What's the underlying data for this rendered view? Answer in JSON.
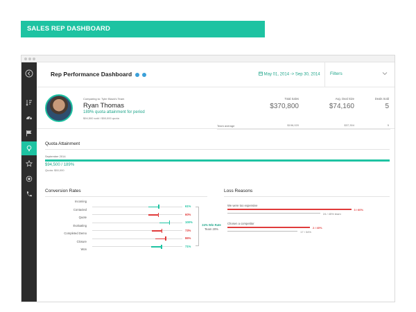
{
  "banner": {
    "title": "SALES REP DASHBOARD"
  },
  "header": {
    "title": "Rep Performance Dashboard",
    "date_range": "May 01, 2014 -> Sep 30, 2014",
    "filters_label": "Filters"
  },
  "profile": {
    "comparing_to": "Comparing to: Tyler Black's Team",
    "name": "Ryan Thomas",
    "quota_attainment": "189% quota attainment for period",
    "sold_summary": "$94,500 sold / $50,000 quota",
    "team_average_label": "Team average"
  },
  "stats": [
    {
      "label": "Total Sales",
      "value": "$370,800",
      "team": "$196,020"
    },
    {
      "label": "Avg. Deal Size",
      "value": "$74,160",
      "team": "$37,304"
    },
    {
      "label": "Deals Sold",
      "value": "5",
      "team": "5"
    }
  ],
  "quota_attainment": {
    "title": "Quota Attainment",
    "month": "September 2014",
    "value_text": "$94,500 / 189%",
    "quota_text": "Quota: $50,000",
    "fraction": 1.0
  },
  "conversion_rates": {
    "title": "Conversion Rates",
    "stages": [
      "Incoming",
      "Contacted",
      "Quote",
      "Evaluating",
      "Completed Demo",
      "Closure",
      "Won"
    ],
    "rates": [
      {
        "pct": "61%",
        "color": "#1ec3a2",
        "value": 0.61
      },
      {
        "pct": "60%",
        "color": "#e03a3a",
        "value": 0.6
      },
      {
        "pct": "100%",
        "color": "#1ec3a2",
        "value": 1.0
      },
      {
        "pct": "73%",
        "color": "#e03a3a",
        "value": 0.73
      },
      {
        "pct": "86%",
        "color": "#e03a3a",
        "value": 0.86
      },
      {
        "pct": "71%",
        "color": "#1ec3a2",
        "value": 0.71
      }
    ],
    "win_rate": "24% Win Rate",
    "team_rate": "Team 20%"
  },
  "loss_reasons": {
    "title": "Loss Reasons",
    "items": [
      {
        "label": "We were too expensive",
        "rep_value": "3 / 60%",
        "team_value": "24 / 45% team",
        "rep_fraction": 0.6,
        "team_fraction": 0.45
      },
      {
        "label": "Chosen a competitor",
        "rep_value": "2 / 40%",
        "team_value": "17 / 34%",
        "rep_fraction": 0.4,
        "team_fraction": 0.34
      }
    ]
  },
  "colors": {
    "accent": "#1ec3a2",
    "danger": "#e03a3a",
    "sidebar": "#2c2c2c"
  },
  "icons": [
    "back-arrow-icon",
    "sort-icon",
    "gauge-icon",
    "flag-icon",
    "lightbulb-icon",
    "star-icon",
    "record-icon",
    "phone-icon",
    "info-icon",
    "help-icon",
    "calendar-icon",
    "chevron-down-icon"
  ]
}
